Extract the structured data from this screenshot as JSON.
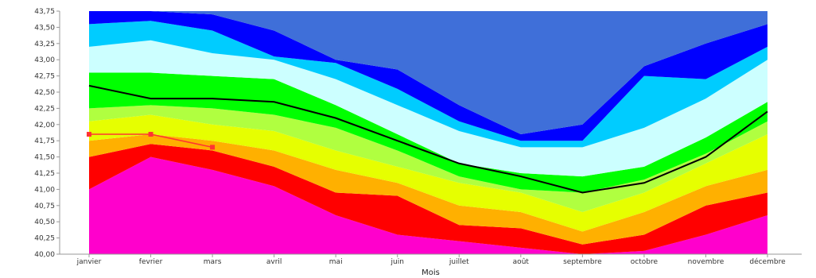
{
  "chart_data": {
    "type": "area",
    "title": "",
    "xlabel": "Mois",
    "ylabel": "",
    "categories": [
      "janvier",
      "fevrier",
      "mars",
      "avril",
      "mai",
      "juin",
      "juillet",
      "août",
      "septembre",
      "octobre",
      "novembre",
      "décembre"
    ],
    "y_ticks": [
      "40,00",
      "40,25",
      "40,50",
      "40,75",
      "41,00",
      "41,25",
      "41,50",
      "41,75",
      "42,00",
      "42,25",
      "42,50",
      "42,75",
      "43,00",
      "43,25",
      "43,50",
      "43,75"
    ],
    "ylim": [
      40.0,
      43.75
    ],
    "grid": false,
    "legend": "none",
    "bands": [
      {
        "color": "#ff00cc",
        "upper": [
          41.0,
          41.5,
          41.3,
          41.05,
          40.6,
          40.3,
          40.2,
          40.1,
          40.0,
          40.05,
          40.3,
          40.6
        ]
      },
      {
        "color": "#ff0000",
        "upper": [
          41.5,
          41.7,
          41.6,
          41.35,
          40.95,
          40.9,
          40.45,
          40.4,
          40.15,
          40.3,
          40.75,
          40.95
        ]
      },
      {
        "color": "#ffb000",
        "upper": [
          41.75,
          41.85,
          41.75,
          41.6,
          41.3,
          41.1,
          40.75,
          40.65,
          40.35,
          40.65,
          41.05,
          41.3
        ]
      },
      {
        "color": "#e6ff00",
        "upper": [
          42.05,
          42.15,
          42.0,
          41.9,
          41.6,
          41.35,
          41.1,
          40.95,
          40.65,
          40.95,
          41.4,
          41.85
        ]
      },
      {
        "color": "#b0ff40",
        "upper": [
          42.25,
          42.3,
          42.25,
          42.15,
          41.95,
          41.6,
          41.2,
          41.0,
          40.95,
          41.15,
          41.55,
          42.05
        ]
      },
      {
        "color": "#00ff00",
        "upper": [
          42.8,
          42.8,
          42.75,
          42.7,
          42.3,
          41.85,
          41.4,
          41.25,
          41.2,
          41.35,
          41.8,
          42.35
        ]
      },
      {
        "color": "#ccffff",
        "upper": [
          43.2,
          43.3,
          43.1,
          43.0,
          42.7,
          42.3,
          41.9,
          41.65,
          41.65,
          41.95,
          42.4,
          43.0
        ]
      },
      {
        "color": "#00ccff",
        "upper": [
          43.55,
          43.6,
          43.45,
          43.05,
          42.95,
          42.55,
          42.05,
          41.75,
          41.75,
          42.75,
          42.7,
          43.2
        ]
      },
      {
        "color": "#0000ff",
        "upper": [
          43.75,
          43.75,
          43.7,
          43.45,
          43.0,
          42.85,
          42.3,
          41.85,
          42.0,
          42.9,
          43.25,
          43.55
        ]
      },
      {
        "color": "#3f6fd9",
        "upper": [
          43.75,
          43.75,
          43.75,
          43.75,
          43.75,
          43.75,
          43.75,
          43.75,
          43.75,
          43.75,
          43.75,
          43.75
        ]
      }
    ],
    "series": [
      {
        "color": "#000000",
        "values": [
          42.6,
          42.4,
          42.4,
          42.35,
          42.1,
          41.75,
          41.4,
          41.2,
          40.95,
          41.1,
          41.5,
          42.2
        ]
      },
      {
        "color": "#ff3333",
        "values": [
          41.85,
          41.85,
          41.65,
          null,
          null,
          null,
          null,
          null,
          null,
          null,
          null,
          null
        ]
      }
    ]
  }
}
